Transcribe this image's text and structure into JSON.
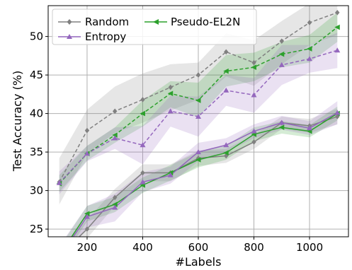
{
  "chart_data": {
    "type": "line",
    "xlabel": "#Labels",
    "ylabel": "Test Accuracy (%)",
    "xlim": [
      60,
      1140
    ],
    "ylim": [
      24,
      54
    ],
    "x_ticks": [
      200,
      400,
      600,
      800,
      1000
    ],
    "y_ticks": [
      25,
      30,
      35,
      40,
      45,
      50
    ],
    "grid": true,
    "legend_position": "top-left",
    "x": [
      100,
      200,
      300,
      400,
      500,
      600,
      700,
      800,
      900,
      1000,
      1100
    ],
    "series": [
      {
        "name": "Random",
        "color": "#808080",
        "marker": "diamond",
        "group": "upper",
        "linestyle": "dashed",
        "values": [
          31.1,
          37.8,
          40.3,
          41.8,
          43.4,
          45.0,
          48.0,
          46.6,
          49.4,
          51.8,
          53.1
        ],
        "lower": [
          28.2,
          34.8,
          37.5,
          38.8,
          40.4,
          41.8,
          44.8,
          43.6,
          46.4,
          48.9,
          50.2
        ],
        "upper": [
          34.2,
          40.5,
          43.5,
          45.2,
          46.4,
          46.6,
          50.4,
          49.5,
          52.0,
          54.3,
          55.2
        ]
      },
      {
        "name": "Pseudo-EL2N",
        "color": "#2ca02c",
        "marker": "triangle-left",
        "group": "upper",
        "linestyle": "dashed",
        "values": [
          30.9,
          34.8,
          37.2,
          40.0,
          42.6,
          41.7,
          45.5,
          46.0,
          47.7,
          48.4,
          51.2
        ],
        "lower": [
          29.8,
          33.9,
          36.2,
          38.3,
          40.8,
          39.5,
          43.5,
          44.2,
          46.0,
          46.6,
          49.3
        ],
        "upper": [
          32.0,
          35.8,
          38.2,
          41.7,
          44.2,
          44.0,
          47.6,
          47.9,
          49.3,
          50.2,
          53.1
        ]
      },
      {
        "name": "Entropy",
        "color": "#9467bd",
        "marker": "triangle-up",
        "group": "upper",
        "linestyle": "dashed",
        "values": [
          31.0,
          34.8,
          36.8,
          35.9,
          40.3,
          39.6,
          43.0,
          42.4,
          46.3,
          47.1,
          48.2
        ],
        "lower": [
          29.5,
          33.8,
          35.4,
          33.4,
          38.3,
          37.0,
          41.0,
          40.1,
          43.7,
          45.3,
          45.9
        ],
        "upper": [
          32.5,
          35.8,
          38.2,
          38.4,
          42.3,
          42.2,
          45.0,
          44.6,
          48.9,
          48.9,
          50.5
        ]
      },
      {
        "name": "Random",
        "color": "#808080",
        "marker": "diamond",
        "group": "lower",
        "linestyle": "solid",
        "values": [
          21.5,
          25.0,
          29.1,
          32.3,
          32.3,
          34.2,
          34.5,
          36.3,
          38.8,
          38.4,
          39.6
        ],
        "lower": [
          20.5,
          23.8,
          28.0,
          31.2,
          31.2,
          33.2,
          33.6,
          35.4,
          38.0,
          37.5,
          38.6
        ],
        "upper": [
          22.5,
          26.2,
          30.2,
          33.4,
          33.4,
          35.2,
          35.4,
          37.2,
          39.6,
          39.3,
          40.6
        ]
      },
      {
        "name": "Pseudo-EL2N",
        "color": "#2ca02c",
        "marker": "triangle-left",
        "group": "lower",
        "linestyle": "solid",
        "values": [
          21.6,
          27.0,
          28.2,
          30.7,
          32.3,
          34.0,
          34.9,
          37.3,
          38.2,
          37.7,
          40.0
        ],
        "lower": [
          20.6,
          26.0,
          27.2,
          29.7,
          31.3,
          33.0,
          34.0,
          36.4,
          37.4,
          36.9,
          39.1
        ],
        "upper": [
          22.6,
          28.0,
          29.2,
          31.7,
          33.3,
          35.0,
          35.8,
          38.2,
          39.0,
          38.5,
          40.9
        ]
      },
      {
        "name": "Entropy",
        "color": "#9467bd",
        "marker": "triangle-up",
        "group": "lower",
        "linestyle": "solid",
        "values": [
          21.4,
          26.6,
          27.8,
          31.1,
          32.0,
          35.0,
          35.9,
          37.7,
          38.8,
          38.1,
          40.1
        ],
        "lower": [
          20.0,
          25.2,
          26.0,
          29.8,
          30.9,
          33.8,
          35.0,
          36.8,
          37.9,
          37.2,
          38.6
        ],
        "upper": [
          22.8,
          28.0,
          29.6,
          32.4,
          33.1,
          36.2,
          36.8,
          38.6,
          39.7,
          39.0,
          41.6
        ]
      }
    ],
    "legend": [
      {
        "label": "Random",
        "color": "#808080",
        "marker": "diamond"
      },
      {
        "label": "Pseudo-EL2N",
        "color": "#2ca02c",
        "marker": "triangle-left"
      },
      {
        "label": "Entropy",
        "color": "#9467bd",
        "marker": "triangle-up"
      }
    ]
  }
}
